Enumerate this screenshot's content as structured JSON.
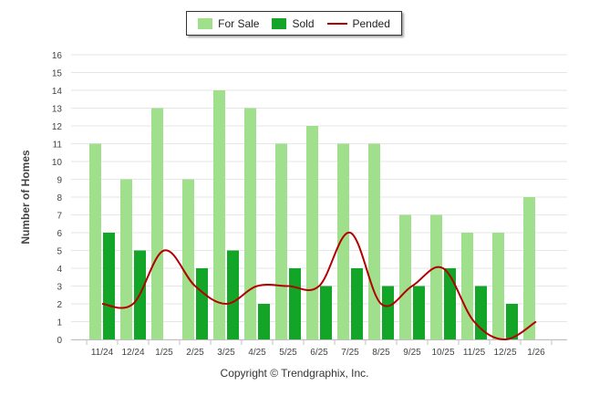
{
  "chart_data": {
    "type": "bar",
    "categories": [
      "11/24",
      "12/24",
      "1/25",
      "2/25",
      "3/25",
      "4/25",
      "5/25",
      "6/25",
      "7/25",
      "8/25",
      "9/25",
      "10/25",
      "11/25",
      "12/25",
      "1/26"
    ],
    "series": [
      {
        "name": "For Sale",
        "type": "bar",
        "color": "#a0df8c",
        "values": [
          11,
          9,
          13,
          9,
          14,
          13,
          11,
          12,
          11,
          11,
          7,
          7,
          6,
          6,
          8
        ]
      },
      {
        "name": "Sold",
        "type": "bar",
        "color": "#12a527",
        "values": [
          6,
          5,
          0,
          4,
          5,
          2,
          4,
          3,
          4,
          3,
          3,
          4,
          3,
          2,
          0
        ]
      },
      {
        "name": "Pended",
        "type": "line",
        "color": "#b30000",
        "values": [
          2,
          2,
          5,
          3,
          2,
          3,
          3,
          3,
          6,
          2,
          3,
          4,
          1,
          0,
          1
        ]
      }
    ],
    "ylabel": "Number of Homes",
    "xlabel": "",
    "ylim": [
      0,
      16
    ],
    "yticks": [
      0,
      1,
      2,
      3,
      4,
      5,
      6,
      7,
      8,
      9,
      10,
      11,
      12,
      13,
      14,
      15,
      16
    ],
    "grid": true,
    "legend": "top-center",
    "credits": "Copyright © Trendgraphix, Inc."
  }
}
